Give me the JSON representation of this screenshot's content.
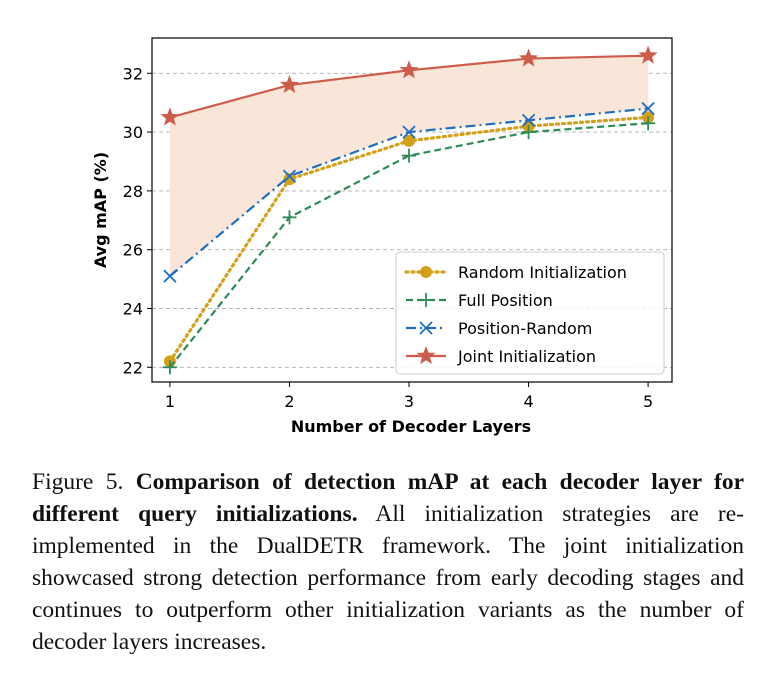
{
  "chart_data": {
    "type": "line",
    "xlabel": "Number of Decoder Layers",
    "ylabel": "Avg mAP (%)",
    "x": [
      1,
      2,
      3,
      4,
      5
    ],
    "xlim": [
      0.85,
      5.2
    ],
    "ylim": [
      21.5,
      33.2
    ],
    "xticks": [
      1,
      2,
      3,
      4,
      5
    ],
    "yticks": [
      22,
      24,
      26,
      28,
      30,
      32
    ],
    "grid": "horizontal dashed",
    "legend_position": "lower-right",
    "shaded_region": {
      "between": [
        "Joint Initialization",
        "Position-Random"
      ],
      "color": "#f9e6d9"
    },
    "series": [
      {
        "name": "Random Initialization",
        "values": [
          22.2,
          28.4,
          29.7,
          30.2,
          30.5
        ],
        "color": "#d4a017",
        "style": "dotted",
        "marker": "circle"
      },
      {
        "name": "Full Position",
        "values": [
          22.0,
          27.1,
          29.2,
          30.0,
          30.3
        ],
        "color": "#2e8b57",
        "style": "dashed",
        "marker": "plus"
      },
      {
        "name": "Position-Random",
        "values": [
          25.1,
          28.5,
          30.0,
          30.4,
          30.8
        ],
        "color": "#1f6fbf",
        "style": "dashdot",
        "marker": "x"
      },
      {
        "name": "Joint Initialization",
        "values": [
          30.5,
          31.6,
          32.1,
          32.5,
          32.6
        ],
        "color": "#cd5c4a",
        "style": "solid",
        "marker": "star"
      }
    ]
  },
  "caption": {
    "label": "Figure 5.",
    "bold": "Comparison of detection mAP at each decoder layer for different query initializations.",
    "text": "All initialization strategies are re-implemented in the DualDETR framework. The joint initialization showcased strong detection performance from early decoding stages and continues to outperform other initialization variants as the number of decoder layers increases."
  }
}
